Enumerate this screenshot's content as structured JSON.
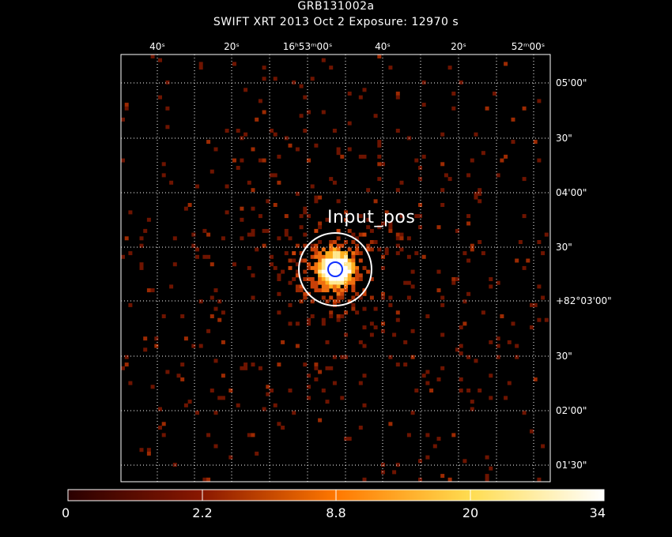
{
  "title": "GRB131002a",
  "subtitle": "SWIFT XRT   2013 Oct  2    Exposure: 12970 s",
  "source_label": "Input_pos",
  "colors": {
    "background": "#000000",
    "frame": "#ffffff",
    "grid": "#ffffff",
    "error_circle": "#ffffff",
    "inner_circle": "#1030ff"
  },
  "chart_data": {
    "type": "heatmap",
    "instrument": "SWIFT XRT",
    "target": "GRB131002a",
    "date": "2013 Oct  2",
    "exposure_s": 12970,
    "ra_tick_labels": [
      "40ˢ",
      "20ˢ",
      "16ʰ53ᵐ00ˢ",
      "40ˢ",
      "20ˢ",
      "52ᵐ00ˢ"
    ],
    "dec_tick_labels": [
      "05'00\"",
      "30\"",
      "04'00\"",
      "30\"",
      "+82°03'00\"",
      "30\"",
      "02'00\"",
      "01'30\""
    ],
    "grid": true,
    "colorbar": {
      "scale": "nonlinear",
      "tick_labels": [
        "0",
        "2.2",
        "8.8",
        "20",
        "34"
      ],
      "range": [
        0,
        34
      ]
    },
    "source": {
      "label": "Input_pos",
      "peak_counts": 34
    }
  }
}
